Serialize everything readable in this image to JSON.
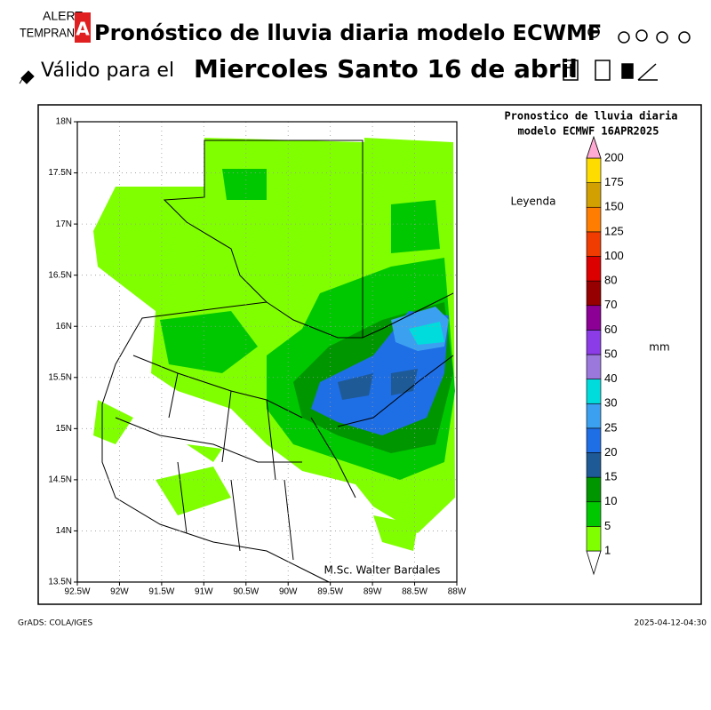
{
  "header": {
    "logo_top": "ALERT",
    "logo_bottom": "TEMPRAN",
    "logo_badge": "A",
    "title": "Pronóstico de lluvia diaria modelo ECWMF",
    "subtitle_prefix": "Válido para el",
    "subtitle_date": "Miercoles Santo 16 de abril"
  },
  "map": {
    "title_line1": "Pronostico de lluvia diaria",
    "title_line2": "modelo ECMWF   16APR2025",
    "legend_title": "Leyenda",
    "unit": "mm",
    "credit": "M.Sc. Walter Bardales",
    "xticks": [
      "92.5W",
      "92W",
      "91.5W",
      "91W",
      "90.5W",
      "90W",
      "89.5W",
      "89W",
      "88.5W",
      "88W"
    ],
    "yticks": [
      "18N",
      "17.5N",
      "17N",
      "16.5N",
      "16N",
      "15.5N",
      "15N",
      "14.5N",
      "14N",
      "13.5N"
    ],
    "colorbar": {
      "levels": [
        1,
        5,
        10,
        15,
        20,
        25,
        30,
        40,
        50,
        60,
        70,
        80,
        100,
        125,
        150,
        175,
        200
      ],
      "colors": [
        "#80ff00",
        "#00c800",
        "#009600",
        "#1e5a96",
        "#1e6ee6",
        "#3ca0f0",
        "#00dcdc",
        "#9b78dc",
        "#8c3ce6",
        "#8c0096",
        "#960000",
        "#dc0000",
        "#f03c00",
        "#ff7d00",
        "#d2a000",
        "#ffdc00",
        "#ffaad2"
      ]
    }
  },
  "footer": {
    "left": "GrADS: COLA/IGES",
    "right": "2025-04-12-04:30"
  }
}
